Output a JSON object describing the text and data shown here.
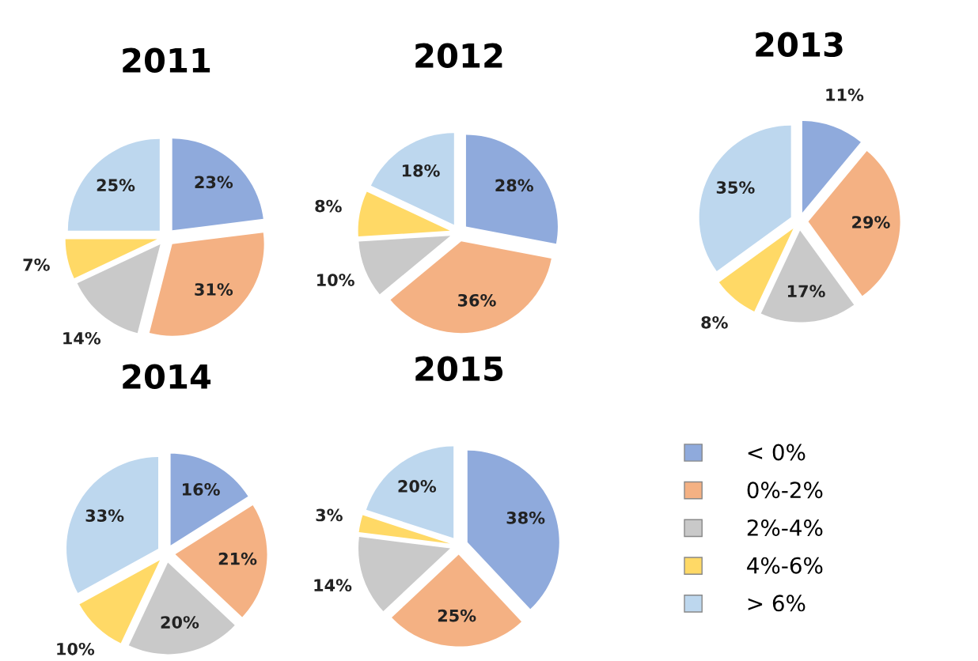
{
  "chart_data": [
    {
      "type": "pie",
      "title": "2011",
      "categories": [
        "< 0%",
        "0%-2%",
        "2%-4%",
        "4%-6%",
        "> 6%"
      ],
      "values": [
        23,
        31,
        14,
        7,
        25
      ],
      "value_labels": [
        "23%",
        "31%",
        "14%",
        "7%",
        "25%"
      ],
      "colors": [
        "#8faadc",
        "#f4b183",
        "#c9c9c9",
        "#ffd966",
        "#bdd7ee"
      ],
      "legend": "right"
    },
    {
      "type": "pie",
      "title": "2012",
      "categories": [
        null,
        null,
        null,
        null,
        null
      ],
      "values": [
        28,
        36,
        10,
        8,
        18
      ],
      "value_labels": [
        "28%",
        "36%",
        "10%",
        "8%",
        "18%"
      ],
      "colors": [
        "#8faadc",
        "#f4b183",
        "#c9c9c9",
        "#ffd966",
        "#bdd7ee"
      ]
    },
    {
      "type": "pie",
      "title": "2013",
      "categories": [
        null,
        null,
        null,
        null,
        null
      ],
      "values": [
        11,
        29,
        17,
        8,
        35
      ],
      "value_labels": [
        "11%",
        "29%",
        "17%",
        "8%",
        "35%"
      ],
      "colors": [
        "#8faadc",
        "#f4b183",
        "#c9c9c9",
        "#ffd966",
        "#bdd7ee"
      ]
    },
    {
      "type": "pie",
      "title": "2014",
      "categories": [
        null,
        null,
        null,
        null,
        null
      ],
      "values": [
        16,
        21,
        20,
        10,
        33
      ],
      "value_labels": [
        "16%",
        "21%",
        "20%",
        "10%",
        "33%"
      ],
      "colors": [
        "#8faadc",
        "#f4b183",
        "#c9c9c9",
        "#ffd966",
        "#bdd7ee"
      ]
    },
    {
      "type": "pie",
      "title": "2015",
      "categories": [
        null,
        null,
        null,
        null,
        null
      ],
      "values": [
        38,
        25,
        14,
        3,
        20
      ],
      "value_labels": [
        "38%",
        "25%",
        "14%",
        "3%",
        "20%"
      ],
      "colors": [
        "#8faadc",
        "#f4b183",
        "#c9c9c9",
        "#ffd966",
        "#bdd7ee"
      ]
    }
  ]
}
